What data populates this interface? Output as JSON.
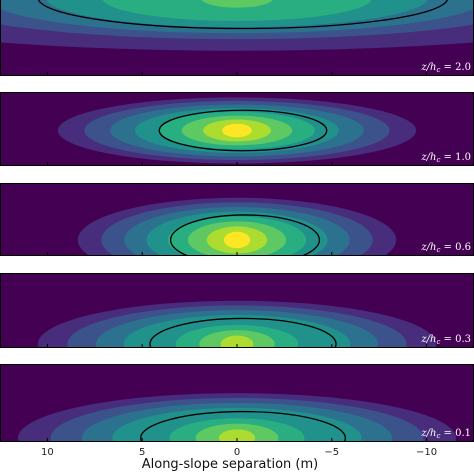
{
  "chart_data": {
    "type": "heatmap",
    "title": "",
    "xlabel": "Along-slope separation (m)",
    "ylabel": "",
    "x_ticks": [
      10,
      5,
      0,
      -5,
      -10
    ],
    "x_tick_labels": [
      "10",
      "5",
      "0",
      "−5",
      "−10"
    ],
    "xlim": [
      12.5,
      -12.5
    ],
    "colormap": "viridis",
    "contour_color": "#000000",
    "panels": [
      {
        "label": "z/h_c = 2.0",
        "label_text": "z/h",
        "label_sub": "c",
        "label_rest": " = 2.0",
        "peak_x": 0.0,
        "half_width_x": 11.0,
        "intensity": 0.78,
        "anchor": "top",
        "contour_level": 0.45
      },
      {
        "label": "z/h_c = 1.0",
        "label_text": "z/h",
        "label_sub": "c",
        "label_rest": " = 1.0",
        "peak_x": 0.0,
        "half_width_x": 4.5,
        "intensity": 1.0,
        "anchor": "center",
        "contour_level": 0.45
      },
      {
        "label": "z/h_c = 0.6",
        "label_text": "z/h",
        "label_sub": "c",
        "label_rest": " = 0.6",
        "peak_x": 0.0,
        "half_width_x": 4.0,
        "intensity": 0.95,
        "anchor": "low",
        "contour_level": 0.45
      },
      {
        "label": "z/h_c = 0.3",
        "label_text": "z/h",
        "label_sub": "c",
        "label_rest": " = 0.3",
        "peak_x": 0.0,
        "half_width_x": 5.0,
        "intensity": 0.9,
        "anchor": "bottom",
        "contour_level": 0.45
      },
      {
        "label": "z/h_c = 0.1",
        "label_text": "z/h",
        "label_sub": "c",
        "label_rest": " = 0.1",
        "peak_x": 0.0,
        "half_width_x": 5.5,
        "intensity": 0.9,
        "anchor": "bottom",
        "contour_level": 0.45
      }
    ]
  }
}
